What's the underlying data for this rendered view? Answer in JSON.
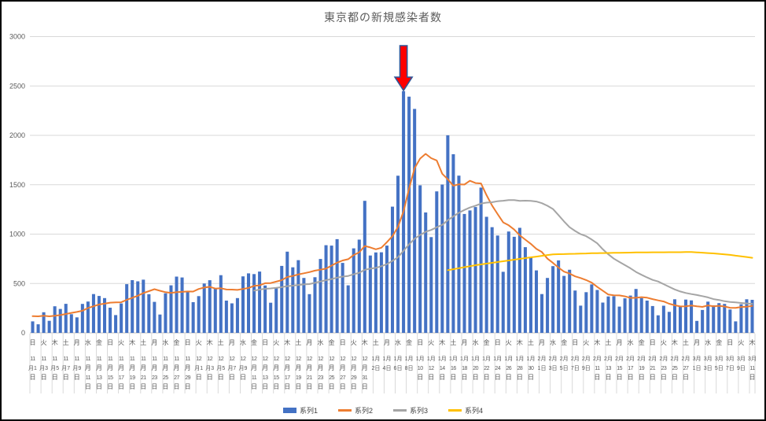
{
  "chart_data": {
    "type": "bar",
    "title": "東京都の新規感染者数",
    "xlabel": "",
    "ylabel": "",
    "ylim": [
      0,
      3000
    ],
    "yticks": [
      0,
      500,
      1000,
      1500,
      2000,
      2500,
      3000
    ],
    "grid": true,
    "legend_position": "bottom",
    "x_tick_labels": [
      "日 11月1日",
      "火 11月3日",
      "木 11月5日",
      "土 11月7日",
      "月 11月9日",
      "水 11月11日",
      "金 11月13日",
      "日 11月15日",
      "火 11月17日",
      "木 11月19日",
      "土 11月21日",
      "月 11月23日",
      "水 11月25日",
      "金 11月27日",
      "日 11月29日",
      "火 12月1日",
      "木 12月3日",
      "土 12月5日",
      "月 12月7日",
      "水 12月9日",
      "金 12月11日",
      "日 12月13日",
      "火 12月15日",
      "木 12月17日",
      "土 12月19日",
      "月 12月21日",
      "水 12月23日",
      "金 12月25日",
      "日 12月27日",
      "火 12月29日",
      "木 12月31日",
      "土 1月2日",
      "月 1月4日",
      "水 1月6日",
      "金 1月8日",
      "日 1月10日",
      "火 1月12日",
      "木 1月14日",
      "土 1月16日",
      "月 1月18日",
      "水 1月20日",
      "金 1月22日",
      "日 1月24日",
      "火 1月26日",
      "木 1月28日",
      "土 1月30日",
      "月 2月1日",
      "水 2月3日",
      "金 2月5日",
      "日 2月7日",
      "火 2月9日",
      "木 2月11日",
      "土 2月13日",
      "月 2月15日",
      "水 2月17日",
      "金 2月19日",
      "日 2月21日",
      "火 2月23日",
      "木 2月25日",
      "土 2月27日",
      "月 3月1日",
      "水 3月3日",
      "金 3月5日",
      "日 3月7日",
      "火 3月9日",
      "木 3月11日"
    ],
    "series": [
      {
        "name": "系列1",
        "type": "bar",
        "color": "#4472C4",
        "values": [
          116,
          87,
          209,
          122,
          269,
          242,
          294,
          189,
          157,
          293,
          317,
          393,
          374,
          352,
          255,
          180,
          298,
          493,
          534,
          522,
          539,
          391,
          314,
          186,
          401,
          481,
          570,
          561,
          418,
          311,
          372,
          500,
          533,
          449,
          584,
          327,
          299,
          352,
          572,
          602,
          595,
          621,
          480,
          305,
          460,
          678,
          822,
          664,
          736,
          556,
          392,
          563,
          748,
          888,
          884,
          949,
          708,
          481,
          856,
          944,
          1337,
          783,
          814,
          816,
          884,
          1278,
          1591,
          2447,
          2392,
          2268,
          1494,
          1219,
          970,
          1433,
          1502,
          2001,
          1809,
          1592,
          1204,
          1240,
          1274,
          1471,
          1175,
          1070,
          986,
          618,
          1026,
          973,
          1064,
          868,
          769,
          633,
          393,
          556,
          676,
          734,
          577,
          639,
          429,
          276,
          412,
          491,
          434,
          307,
          369,
          371,
          266,
          350,
          378,
          445,
          353,
          327,
          272,
          178,
          275,
          213,
          340,
          270,
          337,
          329,
          121,
          232,
          316,
          279,
          301,
          293,
          237,
          116,
          290,
          340,
          335
        ]
      },
      {
        "name": "系列2",
        "type": "line",
        "color": "#ED7D31",
        "values": [
          169,
          167,
          174,
          167,
          174,
          180,
          191,
          202,
          212,
          224,
          252,
          269,
          288,
          296,
          306,
          309,
          310,
          335,
          355,
          376,
          403,
          422,
          442,
          426,
          412,
          405,
          412,
          415,
          419,
          418,
          445,
          459,
          466,
          449,
          452,
          439,
          438,
          435,
          445,
          455,
          476,
          481,
          503,
          504,
          519,
          534,
          566,
          576,
          592,
          603,
          615,
          630,
          640,
          650,
          681,
          711,
          733,
          746,
          788,
          816,
          880,
          865,
          846,
          862,
          919,
          979,
          1072,
          1230,
          1460,
          1668,
          1765,
          1813,
          1769,
          1746,
          1611,
          1555,
          1490,
          1504,
          1502,
          1540,
          1517,
          1513,
          1395,
          1289,
          1203,
          1119,
          1089,
          1046,
          987,
          944,
          901,
          850,
          818,
          751,
          708,
          661,
          620,
          601,
          572,
          555,
          535,
          508,
          465,
          427,
          388,
          380,
          379,
          370,
          354,
          355,
          362,
          356,
          342,
          329,
          318,
          295,
          280,
          268,
          269,
          277,
          269,
          263,
          278,
          269,
          274,
          267,
          254,
          253,
          262,
          265,
          273
        ]
      },
      {
        "name": "系列3",
        "type": "line",
        "color": "#A5A5A5",
        "values": [
          null,
          null,
          null,
          null,
          null,
          null,
          null,
          null,
          null,
          null,
          null,
          null,
          null,
          null,
          null,
          null,
          null,
          null,
          null,
          null,
          null,
          null,
          null,
          null,
          null,
          null,
          null,
          null,
          null,
          null,
          null,
          null,
          null,
          null,
          null,
          null,
          null,
          null,
          null,
          null,
          428,
          438,
          446,
          450,
          456,
          463,
          473,
          478,
          485,
          491,
          494,
          507,
          520,
          534,
          545,
          559,
          570,
          576,
          593,
          609,
          638,
          650,
          658,
          675,
          696,
          729,
          766,
          831,
          896,
          954,
          991,
          1023,
          1042,
          1069,
          1093,
          1141,
          1179,
          1216,
          1245,
          1269,
          1288,
          1309,
          1319,
          1323,
          1333,
          1338,
          1344,
          1345,
          1336,
          1339,
          1337,
          1330,
          1313,
          1287,
          1254,
          1193,
          1128,
          1070,
          1032,
          999,
          979,
          945,
          907,
          846,
          795,
          751,
          718,
          686,
          654,
          617,
          588,
          561,
          536,
          520,
          493,
          466,
          440,
          419,
          404,
          393,
          383,
          372,
          359,
          342,
          333,
          320,
          313,
          308,
          303,
          298,
          294
        ]
      },
      {
        "name": "系列4",
        "type": "line",
        "color": "#FFC000",
        "values": [
          null,
          null,
          null,
          null,
          null,
          null,
          null,
          null,
          null,
          null,
          null,
          null,
          null,
          null,
          null,
          null,
          null,
          null,
          null,
          null,
          null,
          null,
          null,
          null,
          null,
          null,
          null,
          null,
          null,
          null,
          null,
          null,
          null,
          null,
          null,
          null,
          null,
          null,
          null,
          null,
          null,
          null,
          null,
          null,
          null,
          null,
          null,
          null,
          null,
          null,
          null,
          null,
          null,
          null,
          null,
          null,
          null,
          null,
          null,
          null,
          null,
          null,
          null,
          null,
          null,
          null,
          null,
          null,
          null,
          null,
          null,
          null,
          null,
          null,
          null,
          635,
          645,
          655,
          665,
          675,
          685,
          693,
          701,
          709,
          717,
          725,
          733,
          741,
          749,
          757,
          765,
          772,
          780,
          788,
          795,
          797,
          798,
          800,
          801,
          803,
          804,
          806,
          807,
          808,
          809,
          810,
          811,
          812,
          813,
          814,
          815,
          815,
          816,
          816,
          816,
          817,
          817,
          817,
          818,
          818,
          815,
          812,
          808,
          805,
          800,
          795,
          790,
          782,
          775,
          768,
          760
        ]
      }
    ],
    "annotation": {
      "shape": "block-arrow-down",
      "points_at_label": "1月7日",
      "points_at_index": 67,
      "fill": "#FF0000",
      "outline_color": "#2F5597"
    },
    "axis_color": "#BFBFBF",
    "gridline_color": "#D9D9D9",
    "tick_label_color": "#595959"
  }
}
